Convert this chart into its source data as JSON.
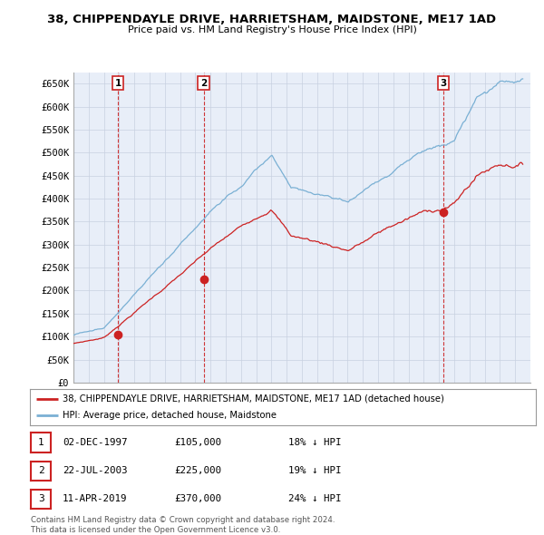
{
  "title": "38, CHIPPENDAYLE DRIVE, HARRIETSHAM, MAIDSTONE, ME17 1AD",
  "subtitle": "Price paid vs. HM Land Registry's House Price Index (HPI)",
  "ylim": [
    0,
    675000
  ],
  "yticks": [
    0,
    50000,
    100000,
    150000,
    200000,
    250000,
    300000,
    350000,
    400000,
    450000,
    500000,
    550000,
    600000,
    650000
  ],
  "ytick_labels": [
    "£0",
    "£50K",
    "£100K",
    "£150K",
    "£200K",
    "£250K",
    "£300K",
    "£350K",
    "£400K",
    "£450K",
    "£500K",
    "£550K",
    "£600K",
    "£650K"
  ],
  "hpi_color": "#7ab0d4",
  "property_color": "#cc2222",
  "grid_color": "#c8d0e0",
  "bg_color": "#ffffff",
  "plot_bg_color": "#e8eef8",
  "transactions": [
    {
      "date": 1997.92,
      "price": 105000,
      "label": "1"
    },
    {
      "date": 2003.55,
      "price": 225000,
      "label": "2"
    },
    {
      "date": 2019.27,
      "price": 370000,
      "label": "3"
    }
  ],
  "transaction_details": [
    {
      "num": "1",
      "date": "02-DEC-1997",
      "price": "£105,000",
      "hpi": "18% ↓ HPI"
    },
    {
      "num": "2",
      "date": "22-JUL-2003",
      "price": "£225,000",
      "hpi": "19% ↓ HPI"
    },
    {
      "num": "3",
      "date": "11-APR-2019",
      "price": "£370,000",
      "hpi": "24% ↓ HPI"
    }
  ],
  "legend_property": "38, CHIPPENDAYLE DRIVE, HARRIETSHAM, MAIDSTONE, ME17 1AD (detached house)",
  "legend_hpi": "HPI: Average price, detached house, Maidstone",
  "footnote": "Contains HM Land Registry data © Crown copyright and database right 2024.\nThis data is licensed under the Open Government Licence v3.0.",
  "xmin": 1995.0,
  "xmax": 2025.0
}
